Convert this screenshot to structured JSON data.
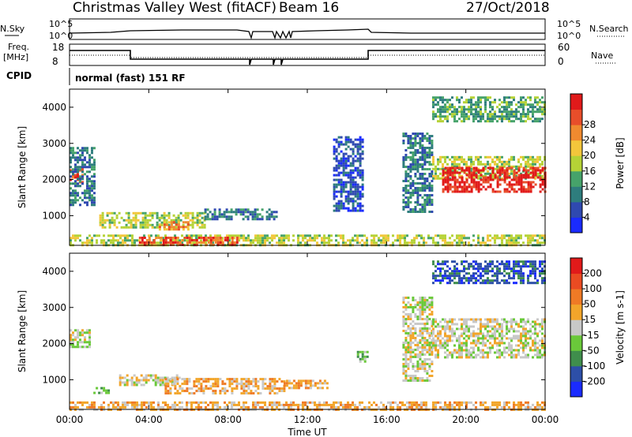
{
  "header": {
    "station": "Christmas Valley West (fitACF)",
    "beam": "Beam 16",
    "date": "27/Oct/2018"
  },
  "strip": {
    "nsky_label": "N.Sky",
    "nsearch_label": "N.Search",
    "nsky_ticks": [
      "10^5",
      "10^0"
    ],
    "nsearch_ticks": [
      "10^5",
      "10^0"
    ],
    "freq_label": "Freq.",
    "freq_unit": "[MHz]",
    "freq_ticks": [
      "18",
      "8"
    ],
    "nave_label": "Nave",
    "nave_ticks": [
      "60",
      "0"
    ],
    "cpid_label": "CPID",
    "cpid_value": "normal (fast) 151 RF"
  },
  "axes": {
    "x_label": "Time UT",
    "x_ticks": [
      "00:00",
      "04:00",
      "08:00",
      "12:00",
      "16:00",
      "20:00",
      "00:00"
    ],
    "y_label": "Slant Range [km]",
    "y_ticks": [
      "1000",
      "2000",
      "3000",
      "4000"
    ]
  },
  "chart_data": [
    {
      "type": "heatmap",
      "title": "",
      "xlabel": "Time UT",
      "ylabel": "Slant Range [km]",
      "xlim": [
        0,
        24
      ],
      "ylim": [
        180,
        4500
      ],
      "colorbar": {
        "label": "Power [dB]",
        "ticks": [
          "4",
          "8",
          "12",
          "16",
          "20",
          "24",
          "28"
        ],
        "colors": [
          "#1a2bff",
          "#2f49b0",
          "#2e7d7d",
          "#46a36a",
          "#b5d236",
          "#f3c63b",
          "#f08a2f",
          "#e84e2a",
          "#e11a1a"
        ]
      },
      "regions": [
        {
          "t": [
            0.0,
            0.6
          ],
          "r": [
            1950,
            2350
          ],
          "level": 7
        },
        {
          "t": [
            0.0,
            1.2
          ],
          "r": [
            1300,
            2900
          ],
          "level": 2
        },
        {
          "t": [
            1.5,
            6.8
          ],
          "r": [
            650,
            1100
          ],
          "level": 4
        },
        {
          "t": [
            4.5,
            6.0
          ],
          "r": [
            650,
            850
          ],
          "level": 6
        },
        {
          "t": [
            6.8,
            10.5
          ],
          "r": [
            900,
            1200
          ],
          "level": 2
        },
        {
          "t": [
            0.0,
            24.0
          ],
          "r": [
            200,
            480
          ],
          "level": 4
        },
        {
          "t": [
            3.5,
            8.5
          ],
          "r": [
            220,
            420
          ],
          "level": 7
        },
        {
          "t": [
            13.3,
            14.8
          ],
          "r": [
            1150,
            3200
          ],
          "level": 1
        },
        {
          "t": [
            16.8,
            18.3
          ],
          "r": [
            1100,
            3300
          ],
          "level": 2
        },
        {
          "t": [
            18.3,
            24.0
          ],
          "r": [
            2000,
            2650
          ],
          "level": 4
        },
        {
          "t": [
            18.8,
            24.0
          ],
          "r": [
            1650,
            2350
          ],
          "level": 8
        },
        {
          "t": [
            18.3,
            24.0
          ],
          "r": [
            3600,
            4300
          ],
          "level": 3
        }
      ]
    },
    {
      "type": "heatmap",
      "title": "",
      "xlabel": "Time UT",
      "ylabel": "Slant Range [km]",
      "xlim": [
        0,
        24
      ],
      "ylim": [
        180,
        4500
      ],
      "colorbar": {
        "label": "Velocity [m s-1]",
        "ticks": [
          "200",
          "100",
          "50",
          "15",
          "-15",
          "-50",
          "-100",
          "-200"
        ],
        "colors": [
          "#1a2bff",
          "#2d4fa8",
          "#3f8e4c",
          "#6ac93a",
          "#c8c8c8",
          "#f2a52a",
          "#ef7a25",
          "#ea4b22",
          "#e11a1a"
        ]
      },
      "regions": [
        {
          "t": [
            0.0,
            1.0
          ],
          "r": [
            1900,
            2400
          ],
          "level": 4
        },
        {
          "t": [
            1.2,
            2.0
          ],
          "r": [
            650,
            800
          ],
          "level": 3
        },
        {
          "t": [
            2.5,
            5.5
          ],
          "r": [
            850,
            1150
          ],
          "level": 4
        },
        {
          "t": [
            4.8,
            10.8
          ],
          "r": [
            650,
            1050
          ],
          "level": 5
        },
        {
          "t": [
            10.8,
            13.0
          ],
          "r": [
            780,
            1000
          ],
          "level": 5
        },
        {
          "t": [
            0.0,
            24.0
          ],
          "r": [
            200,
            400
          ],
          "level": 5
        },
        {
          "t": [
            14.5,
            15.0
          ],
          "r": [
            1500,
            1800
          ],
          "level": 3
        },
        {
          "t": [
            16.8,
            18.3
          ],
          "r": [
            1000,
            3300
          ],
          "level": 4
        },
        {
          "t": [
            18.3,
            24.0
          ],
          "r": [
            1650,
            2700
          ],
          "level": 4
        },
        {
          "t": [
            18.3,
            24.0
          ],
          "r": [
            3700,
            4300
          ],
          "level": 1
        }
      ]
    }
  ]
}
